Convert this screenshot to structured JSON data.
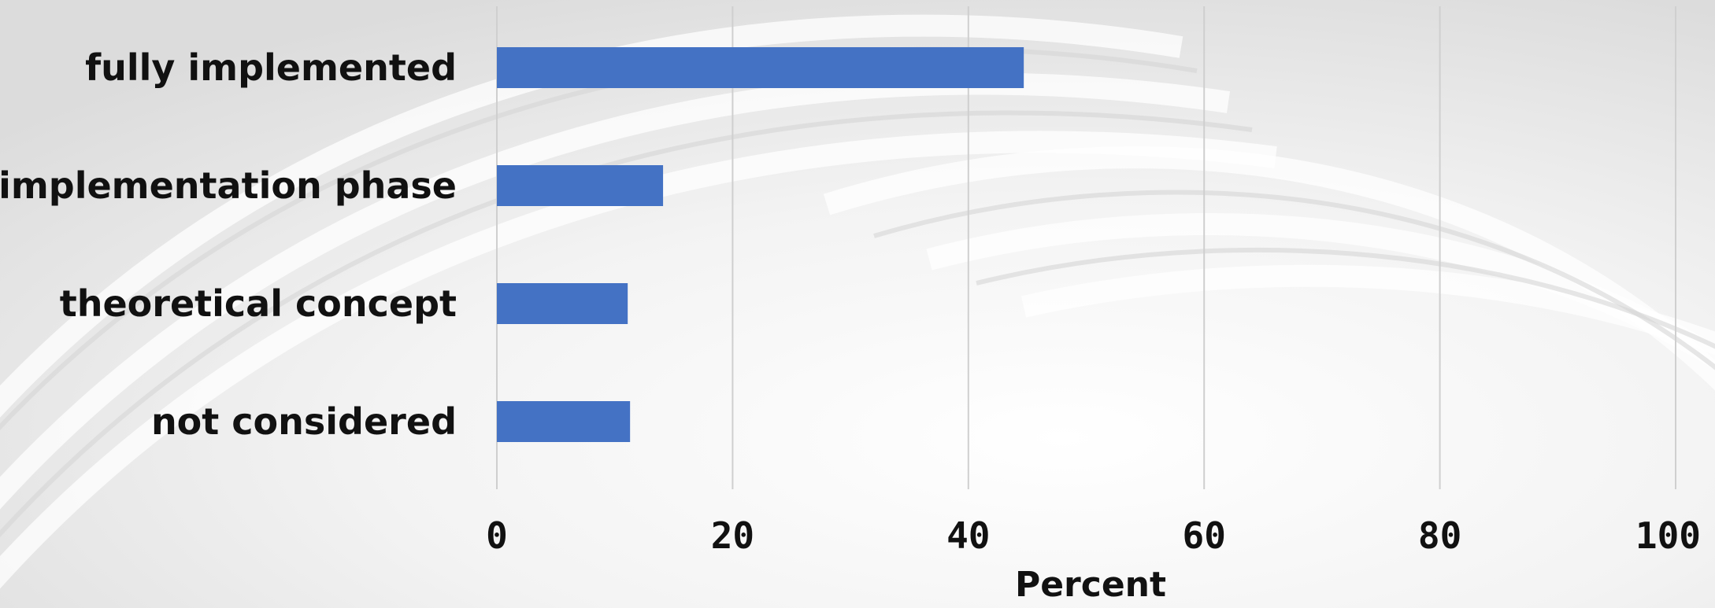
{
  "chart_data": {
    "type": "bar",
    "orientation": "horizontal",
    "categories": [
      "fully implemented",
      "implementation phase",
      "theoretical concept",
      "not considered"
    ],
    "values": [
      44.7,
      14.1,
      11.1,
      11.3
    ],
    "xlim": [
      0,
      100
    ],
    "xticks": [
      "0",
      "20",
      "40",
      "60",
      "80",
      "100"
    ],
    "xtick_values": [
      0,
      20,
      40,
      60,
      80,
      100
    ],
    "xlabel": "Percent",
    "grid": "vertical",
    "colors": {
      "bar": "#4472C4",
      "grid": "#cfcfcf",
      "text": "#111111"
    }
  }
}
